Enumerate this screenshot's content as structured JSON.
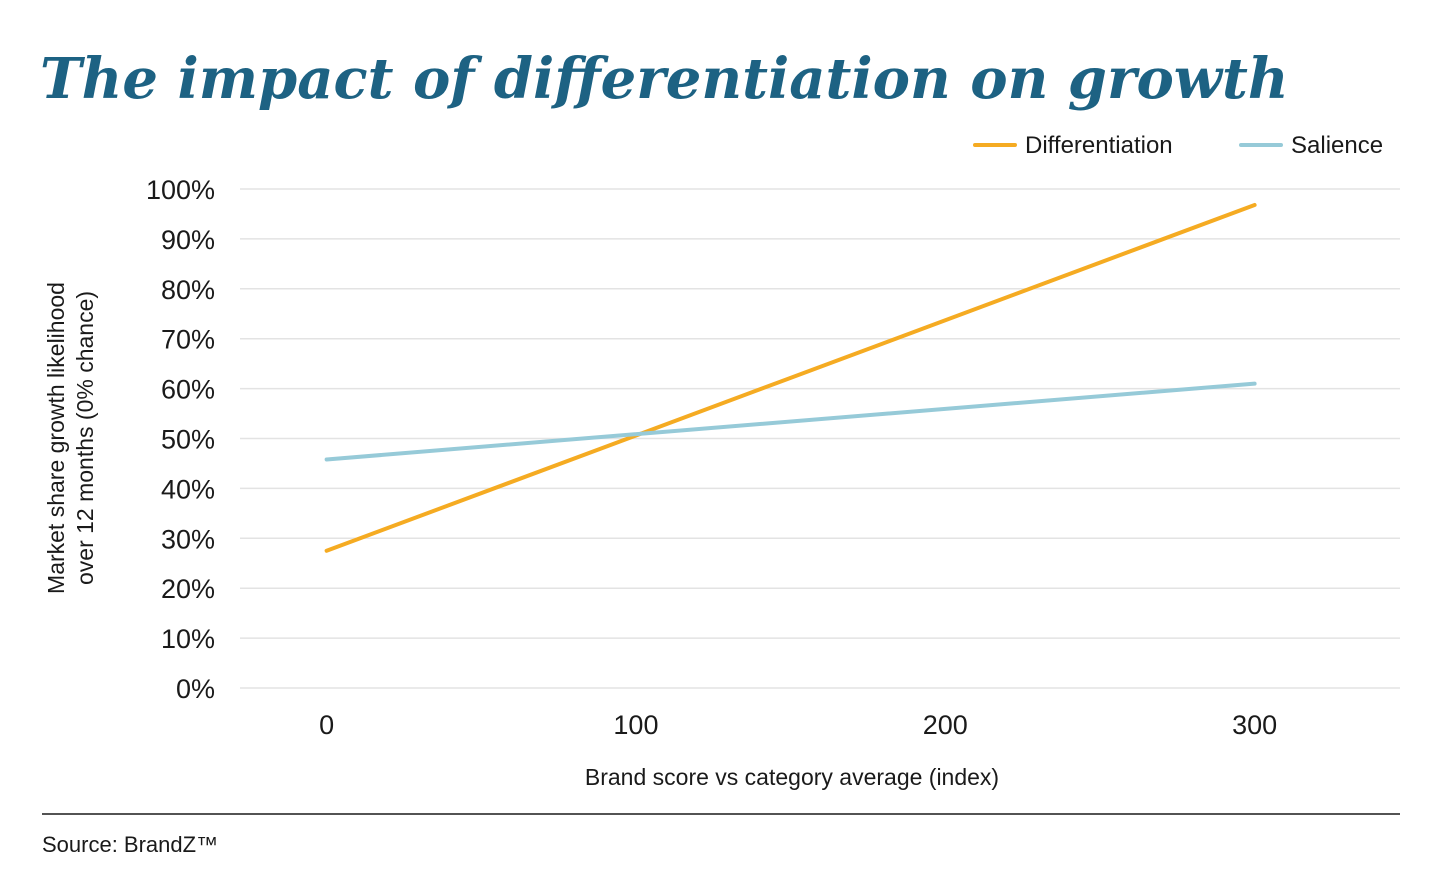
{
  "chart_data": {
    "type": "line",
    "title": "The impact of differentiation on growth",
    "xlabel": "Brand score vs category average (index)",
    "ylabel_line1": "Market share growth likelihood",
    "ylabel_line2": "over 12 months (0% chance)",
    "x_ticks": [
      "0",
      "100",
      "200",
      "300"
    ],
    "x_tick_values": [
      0,
      100,
      200,
      300
    ],
    "xlim": [
      -28,
      347
    ],
    "y_ticks": [
      "0%",
      "10%",
      "20%",
      "30%",
      "40%",
      "50%",
      "60%",
      "70%",
      "80%",
      "90%",
      "100%"
    ],
    "y_tick_values": [
      0,
      10,
      20,
      30,
      40,
      50,
      60,
      70,
      80,
      90,
      100
    ],
    "ylim": [
      0,
      100
    ],
    "grid": true,
    "legend_position": "top-right",
    "series": [
      {
        "name": "Differentiation",
        "color": "#f5ab22",
        "x": [
          0,
          300
        ],
        "y": [
          27.5,
          96.8
        ]
      },
      {
        "name": "Salience",
        "color": "#96cad8",
        "x": [
          0,
          300
        ],
        "y": [
          45.8,
          61.0
        ]
      }
    ]
  },
  "source": "Source: BrandZ™"
}
